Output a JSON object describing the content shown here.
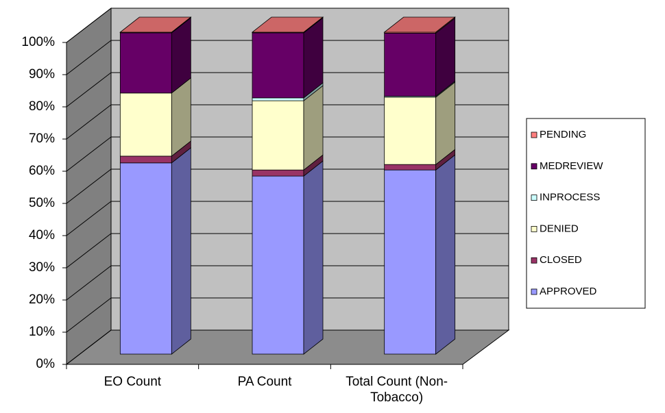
{
  "chart_data": {
    "type": "bar3d_stacked",
    "categories": [
      "EO Count",
      "PA Count",
      "Total Count (Non-Tobacco)"
    ],
    "series": [
      {
        "name": "APPROVED",
        "color": "#9999ff",
        "values": [
          59.4,
          55.3,
          57.2
        ]
      },
      {
        "name": "CLOSED",
        "color": "#993366",
        "values": [
          2.1,
          1.9,
          1.7
        ]
      },
      {
        "name": "DENIED",
        "color": "#ffffcc",
        "values": [
          19.6,
          21.5,
          20.9
        ]
      },
      {
        "name": "INPROCESS",
        "color": "#ccffff",
        "values": [
          0,
          0.9,
          0.3
        ]
      },
      {
        "name": "MEDREVIEW",
        "color": "#660066",
        "values": [
          18.7,
          20.2,
          19.6
        ]
      },
      {
        "name": "PENDING",
        "color": "#ff8080",
        "values": [
          0.2,
          0.2,
          0.3
        ]
      }
    ],
    "ylim": [
      0,
      100
    ],
    "yticks": [
      {
        "value": 0,
        "label": "0%"
      },
      {
        "value": 10,
        "label": "10%"
      },
      {
        "value": 20,
        "label": "20%"
      },
      {
        "value": 30,
        "label": "30%"
      },
      {
        "value": 40,
        "label": "40%"
      },
      {
        "value": 50,
        "label": "50%"
      },
      {
        "value": 60,
        "label": "60%"
      },
      {
        "value": 70,
        "label": "70%"
      },
      {
        "value": 80,
        "label": "80%"
      },
      {
        "value": 90,
        "label": "90%"
      },
      {
        "value": 100,
        "label": "100%"
      }
    ],
    "grid": true,
    "legend": "right"
  }
}
